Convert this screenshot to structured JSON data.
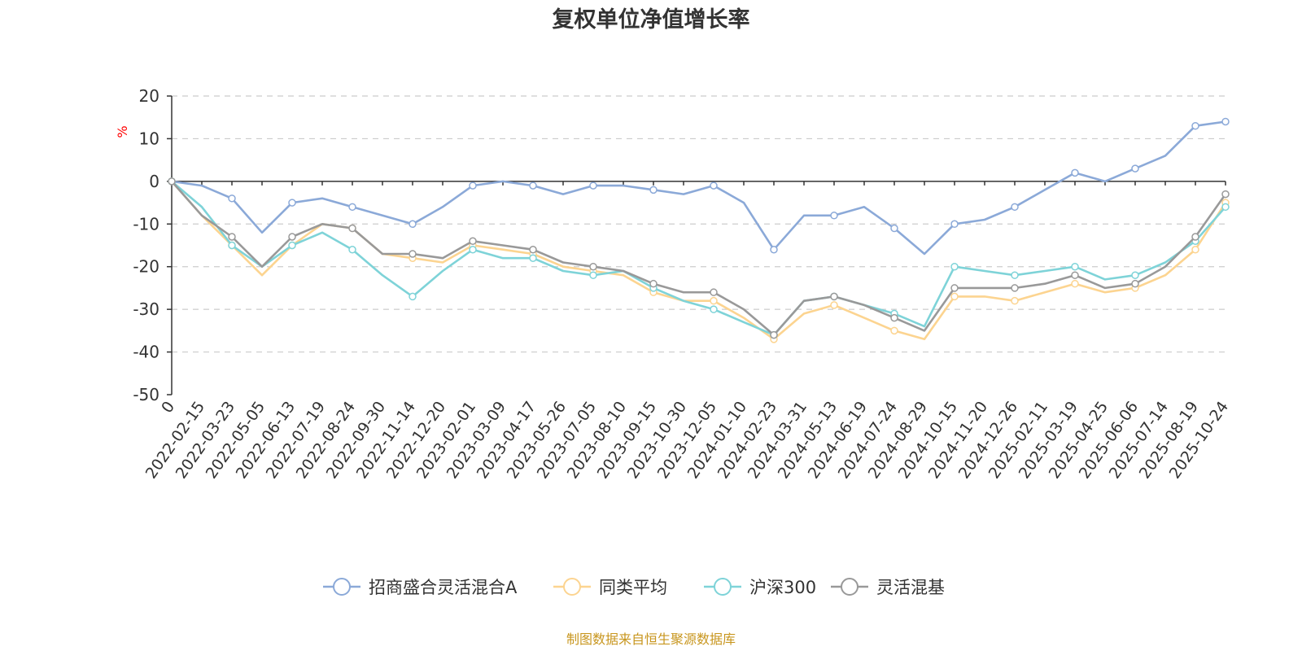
{
  "chart_data": {
    "type": "line",
    "title": "复权单位净值增长率",
    "ylabel": "%",
    "ylim": [
      -50,
      20
    ],
    "yticks": [
      "20",
      "10",
      "0",
      "-10",
      "-20",
      "-30",
      "-40",
      "-50"
    ],
    "categories": [
      "0",
      "2022-02-15",
      "2022-03-23",
      "2022-05-05",
      "2022-06-13",
      "2022-07-19",
      "2022-08-24",
      "2022-09-30",
      "2022-11-14",
      "2022-12-20",
      "2023-02-01",
      "2023-03-09",
      "2023-04-17",
      "2023-05-26",
      "2023-07-05",
      "2023-08-10",
      "2023-09-15",
      "2023-10-30",
      "2023-12-05",
      "2024-01-10",
      "2024-02-23",
      "2024-03-31",
      "2024-05-13",
      "2024-06-19",
      "2024-07-24",
      "2024-08-29",
      "2024-10-15",
      "2024-11-20",
      "2024-12-26",
      "2025-02-11",
      "2025-03-19",
      "2025-04-25",
      "2025-06-06",
      "2025-07-14",
      "2025-08-19",
      "2025-10-24"
    ],
    "series": [
      {
        "name": "招商盛合灵活混合A",
        "color": "#8ba9d8",
        "values": [
          0,
          -1,
          -4,
          -12,
          -5,
          -4,
          -6,
          -8,
          -10,
          -6,
          -1,
          0,
          -1,
          -3,
          -1,
          -1,
          -2,
          -3,
          -1,
          -5,
          -16,
          -8,
          -8,
          -6,
          -11,
          -17,
          -10,
          -9,
          -6,
          -2,
          2,
          0,
          3,
          6,
          13,
          14
        ]
      },
      {
        "name": "同类平均",
        "color": "#fcd490",
        "values": [
          0,
          -8,
          -15,
          -22,
          -15,
          -10,
          -11,
          -17,
          -18,
          -19,
          -15,
          -16,
          -17,
          -20,
          -21,
          -22,
          -26,
          -28,
          -28,
          -32,
          -37,
          -31,
          -29,
          -32,
          -35,
          -37,
          -27,
          -27,
          -28,
          -26,
          -24,
          -26,
          -25,
          -22,
          -16,
          -5
        ]
      },
      {
        "name": "沪深300",
        "color": "#7ed3d8",
        "values": [
          0,
          -6,
          -15,
          -20,
          -15,
          -12,
          -16,
          -22,
          -27,
          -21,
          -16,
          -18,
          -18,
          -21,
          -22,
          -21,
          -25,
          -28,
          -30,
          -33,
          -36,
          -28,
          -27,
          -29,
          -31,
          -34,
          -20,
          -21,
          -22,
          -21,
          -20,
          -23,
          -22,
          -19,
          -14,
          -6
        ]
      },
      {
        "name": "灵活混基",
        "color": "#999999",
        "values": [
          0,
          -8,
          -13,
          -20,
          -13,
          -10,
          -11,
          -17,
          -17,
          -18,
          -14,
          -15,
          -16,
          -19,
          -20,
          -21,
          -24,
          -26,
          -26,
          -30,
          -36,
          -28,
          -27,
          -29,
          -32,
          -35,
          -25,
          -25,
          -25,
          -24,
          -22,
          -25,
          -24,
          -20,
          -13,
          -3
        ]
      }
    ]
  },
  "source_note": "制图数据来自恒生聚源数据库"
}
